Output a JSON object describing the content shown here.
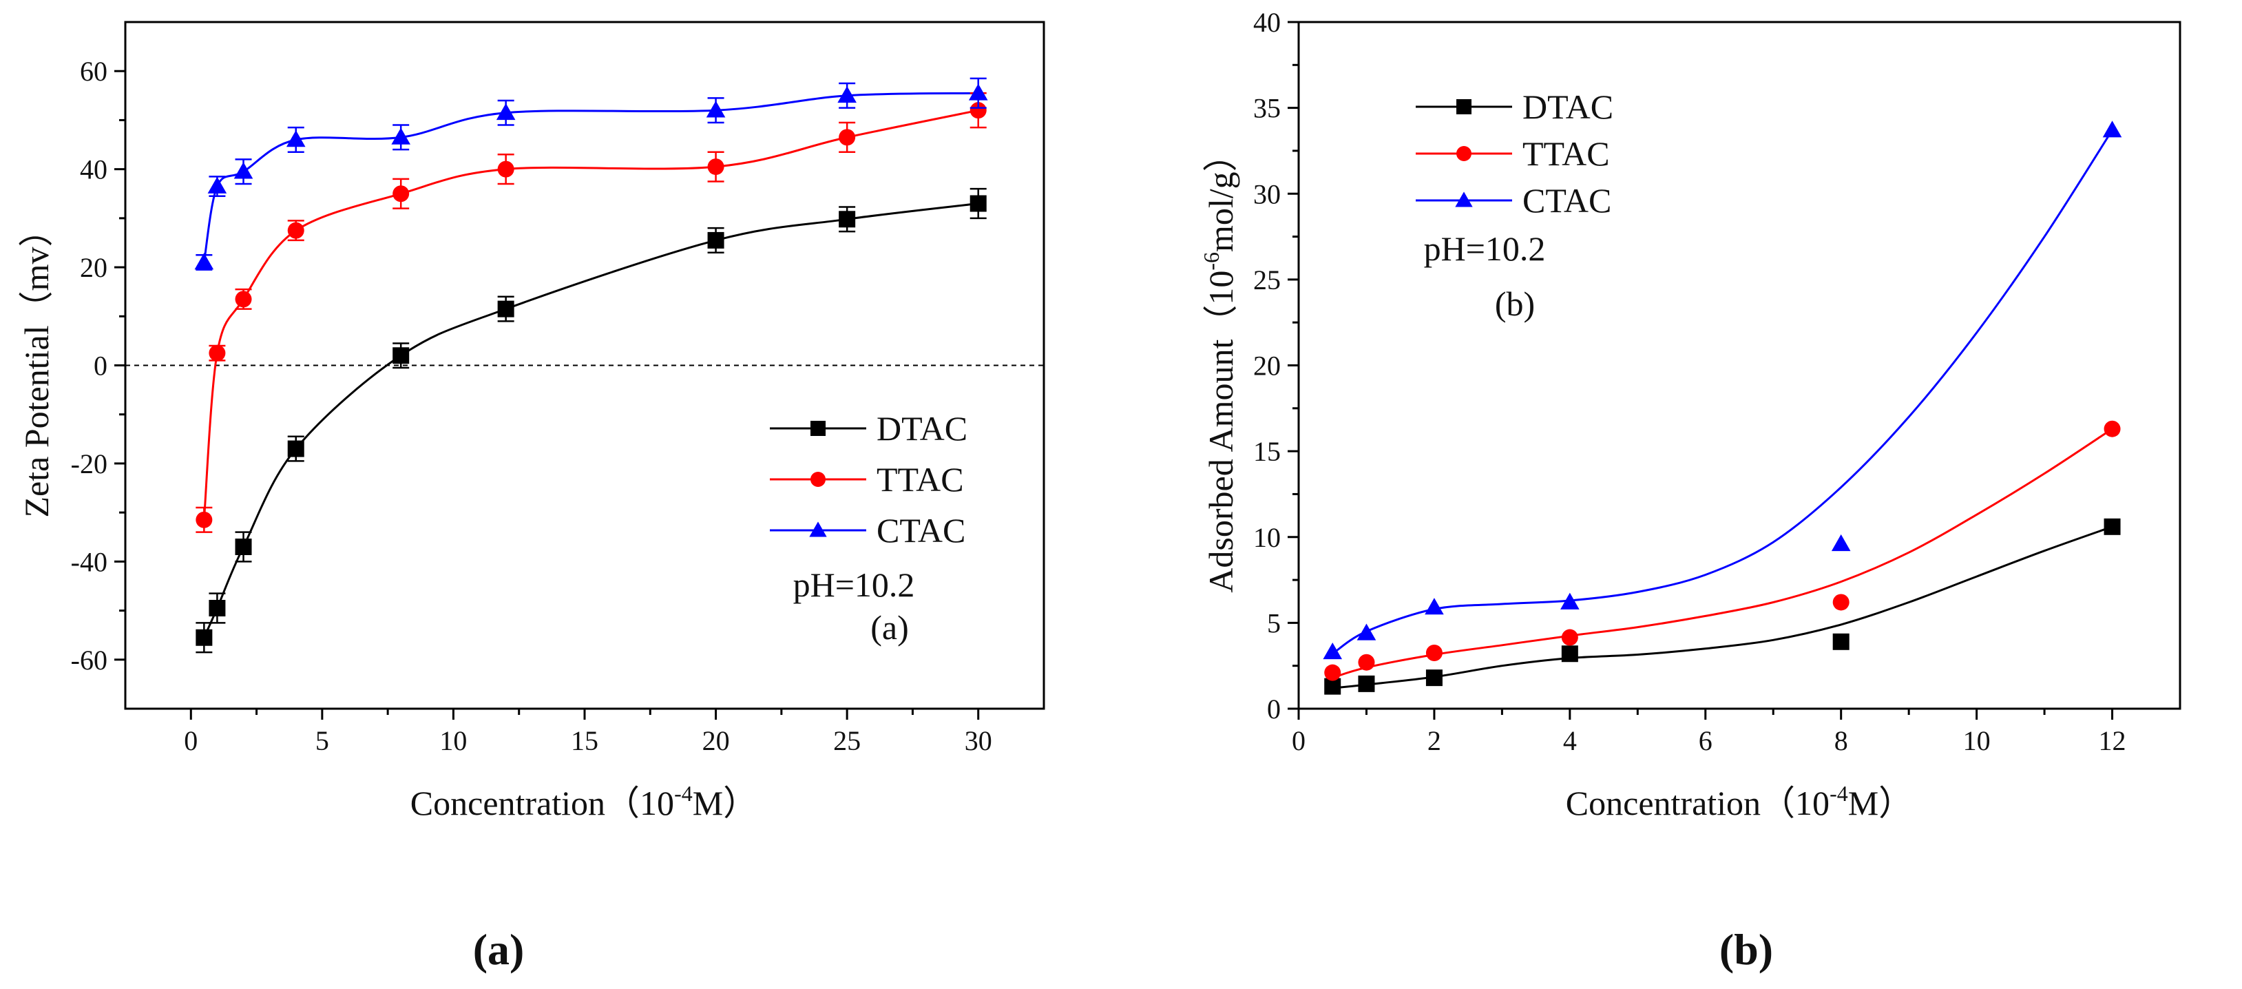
{
  "chart_data": [
    {
      "type": "scatter",
      "panel_caption": "(a)",
      "inner_label": "(a)",
      "annotation": "pH=10.2",
      "xlabel_main": "Concentration（10",
      "xlabel_sup": "-4",
      "xlabel_end": "M）",
      "ylabel": "Zeta Potential（mv）",
      "xlim": [
        -2.5,
        32.5
      ],
      "ylim": [
        -70,
        70
      ],
      "xticks": [
        0,
        5,
        10,
        15,
        20,
        25,
        30
      ],
      "yticks": [
        -60,
        -40,
        -20,
        0,
        20,
        40,
        60
      ],
      "xminor": [
        2.5,
        7.5,
        12.5,
        17.5,
        22.5,
        27.5
      ],
      "yminor": [
        -50,
        -30,
        -10,
        10,
        30,
        50
      ],
      "zero_line": true,
      "legend_position": "bottom-right",
      "series": [
        {
          "name": "DTAC",
          "color": "#000000",
          "marker": "square",
          "x": [
            0.5,
            1,
            2,
            4,
            8,
            12,
            20,
            25,
            30
          ],
          "y": [
            -55.5,
            -49.5,
            -37,
            -17,
            2,
            11.5,
            25.5,
            29.8,
            33
          ],
          "err": [
            3,
            3,
            3,
            2.5,
            2.5,
            2.5,
            2.5,
            2.5,
            3
          ]
        },
        {
          "name": "TTAC",
          "color": "#ff0000",
          "marker": "circle",
          "x": [
            0.5,
            1,
            2,
            4,
            8,
            12,
            20,
            25,
            30
          ],
          "y": [
            -31.5,
            2.5,
            13.5,
            27.5,
            35,
            40,
            40.5,
            46.5,
            52
          ],
          "err": [
            2.5,
            1.5,
            2,
            2,
            3,
            3,
            3,
            3,
            3.5
          ]
        },
        {
          "name": "CTAC",
          "color": "#0000ff",
          "marker": "triangle",
          "x": [
            0.5,
            1,
            2,
            4,
            8,
            12,
            20,
            25,
            30
          ],
          "y": [
            21,
            36.5,
            39.5,
            46,
            46.5,
            51.5,
            52,
            55,
            55.5
          ],
          "err": [
            1.5,
            2,
            2.5,
            2.5,
            2.5,
            2.5,
            2.5,
            2.5,
            3
          ]
        }
      ]
    },
    {
      "type": "scatter",
      "panel_caption": "(b)",
      "inner_label": "(b)",
      "annotation": "pH=10.2",
      "xlabel_main": "Concentration（10",
      "xlabel_sup": "-4",
      "xlabel_end": "M）",
      "ylabel_main": "Adsorbed Amount（10",
      "ylabel_sup": "-6",
      "ylabel_end": "mol/g）",
      "xlim": [
        0,
        13
      ],
      "ylim": [
        0,
        40
      ],
      "xticks": [
        0,
        2,
        4,
        6,
        8,
        10,
        12
      ],
      "yticks": [
        0,
        5,
        10,
        15,
        20,
        25,
        30,
        35,
        40
      ],
      "xminor": [
        1,
        3,
        5,
        7,
        9,
        11
      ],
      "yminor": [
        2.5,
        7.5,
        12.5,
        17.5,
        22.5,
        27.5,
        32.5,
        37.5
      ],
      "legend_position": "top-left",
      "series": [
        {
          "name": "DTAC",
          "color": "#000000",
          "marker": "square",
          "x": [
            0.5,
            1,
            2,
            4,
            8,
            12
          ],
          "y": [
            1.3,
            1.45,
            1.8,
            3.2,
            3.9,
            10.6
          ],
          "fit": [
            [
              0.5,
              1.2
            ],
            [
              1,
              1.4
            ],
            [
              2,
              1.85
            ],
            [
              3,
              2.5
            ],
            [
              4,
              2.95
            ],
            [
              5,
              3.15
            ],
            [
              6,
              3.5
            ],
            [
              7,
              4.0
            ],
            [
              8,
              4.9
            ],
            [
              9,
              6.2
            ],
            [
              10,
              7.7
            ],
            [
              11,
              9.2
            ],
            [
              12,
              10.6
            ]
          ]
        },
        {
          "name": "TTAC",
          "color": "#ff0000",
          "marker": "circle",
          "x": [
            0.5,
            1,
            2,
            4,
            8,
            12
          ],
          "y": [
            2.1,
            2.7,
            3.25,
            4.15,
            6.2,
            16.3
          ],
          "fit": [
            [
              0.5,
              1.8
            ],
            [
              1,
              2.4
            ],
            [
              2,
              3.15
            ],
            [
              3,
              3.7
            ],
            [
              4,
              4.25
            ],
            [
              5,
              4.75
            ],
            [
              6,
              5.4
            ],
            [
              7,
              6.2
            ],
            [
              8,
              7.4
            ],
            [
              9,
              9.1
            ],
            [
              10,
              11.3
            ],
            [
              11,
              13.7
            ],
            [
              12,
              16.3
            ]
          ]
        },
        {
          "name": "CTAC",
          "color": "#0000ff",
          "marker": "triangle",
          "x": [
            0.5,
            1,
            2,
            4,
            8,
            12
          ],
          "y": [
            3.3,
            4.4,
            5.9,
            6.2,
            9.6,
            33.7
          ],
          "fit": [
            [
              0.5,
              3.2
            ],
            [
              1,
              4.5
            ],
            [
              2,
              5.8
            ],
            [
              3,
              6.1
            ],
            [
              4,
              6.3
            ],
            [
              5,
              6.8
            ],
            [
              6,
              7.8
            ],
            [
              7,
              9.7
            ],
            [
              8,
              12.9
            ],
            [
              9,
              17.0
            ],
            [
              10,
              21.9
            ],
            [
              11,
              27.5
            ],
            [
              12,
              33.7
            ]
          ]
        }
      ]
    }
  ]
}
